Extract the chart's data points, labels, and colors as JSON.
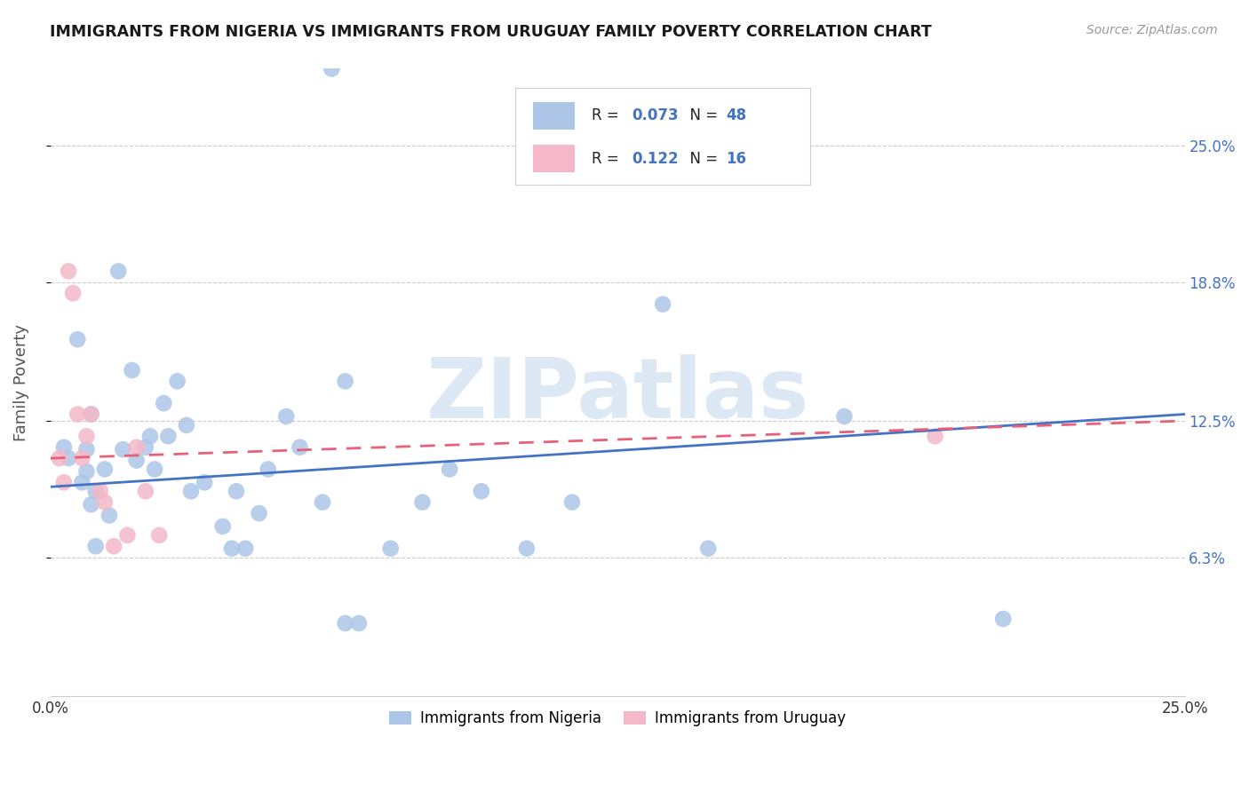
{
  "title": "IMMIGRANTS FROM NIGERIA VS IMMIGRANTS FROM URUGUAY FAMILY POVERTY CORRELATION CHART",
  "source": "Source: ZipAtlas.com",
  "ylabel": "Family Poverty",
  "ytick_labels": [
    "25.0%",
    "18.8%",
    "12.5%",
    "6.3%"
  ],
  "ytick_values": [
    0.25,
    0.188,
    0.125,
    0.063
  ],
  "xlim": [
    0.0,
    0.25
  ],
  "ylim": [
    0.0,
    0.285
  ],
  "nigeria_color": "#adc6e8",
  "uruguay_color": "#f4b8c8",
  "nigeria_line_color": "#4472c4",
  "uruguay_line_color": "#e8607a",
  "nigeria_x": [
    0.003,
    0.004,
    0.006,
    0.007,
    0.008,
    0.008,
    0.009,
    0.009,
    0.01,
    0.01,
    0.012,
    0.013,
    0.015,
    0.016,
    0.018,
    0.019,
    0.021,
    0.022,
    0.023,
    0.025,
    0.026,
    0.028,
    0.03,
    0.031,
    0.034,
    0.038,
    0.04,
    0.041,
    0.043,
    0.046,
    0.048,
    0.052,
    0.055,
    0.06,
    0.062,
    0.065,
    0.065,
    0.068,
    0.075,
    0.082,
    0.088,
    0.095,
    0.105,
    0.115,
    0.135,
    0.145,
    0.175,
    0.21
  ],
  "nigeria_y": [
    0.113,
    0.108,
    0.162,
    0.097,
    0.102,
    0.112,
    0.128,
    0.087,
    0.093,
    0.068,
    0.103,
    0.082,
    0.193,
    0.112,
    0.148,
    0.107,
    0.113,
    0.118,
    0.103,
    0.133,
    0.118,
    0.143,
    0.123,
    0.093,
    0.097,
    0.077,
    0.067,
    0.093,
    0.067,
    0.083,
    0.103,
    0.127,
    0.113,
    0.088,
    0.285,
    0.143,
    0.033,
    0.033,
    0.067,
    0.088,
    0.103,
    0.093,
    0.067,
    0.088,
    0.178,
    0.067,
    0.127,
    0.035
  ],
  "uruguay_x": [
    0.002,
    0.003,
    0.004,
    0.005,
    0.006,
    0.007,
    0.008,
    0.009,
    0.011,
    0.012,
    0.014,
    0.017,
    0.019,
    0.021,
    0.024,
    0.195
  ],
  "uruguay_y": [
    0.108,
    0.097,
    0.193,
    0.183,
    0.128,
    0.108,
    0.118,
    0.128,
    0.093,
    0.088,
    0.068,
    0.073,
    0.113,
    0.093,
    0.073,
    0.118
  ],
  "nigeria_trend": [
    0.095,
    0.128
  ],
  "uruguay_trend": [
    0.108,
    0.125
  ],
  "trend_x": [
    0.0,
    0.25
  ]
}
